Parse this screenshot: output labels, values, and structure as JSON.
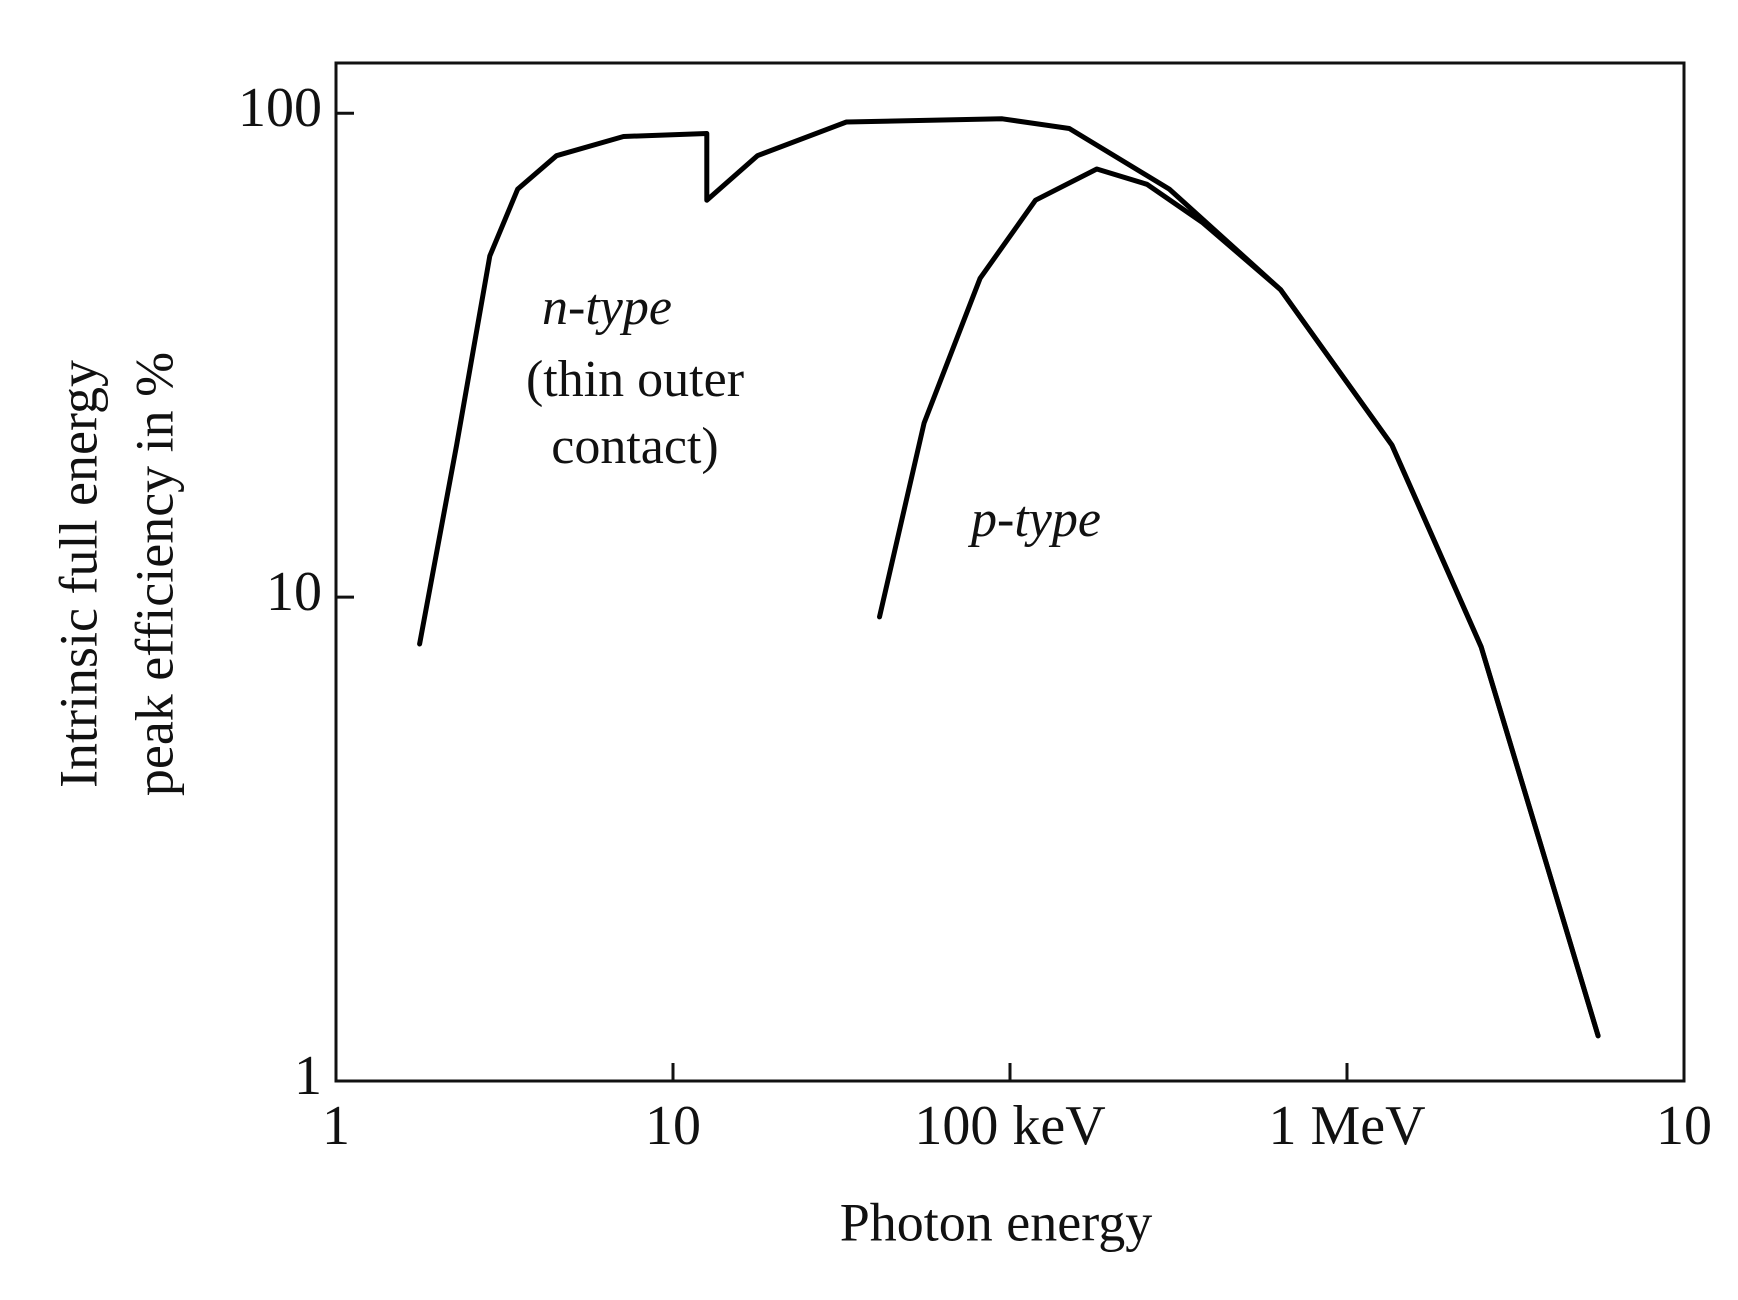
{
  "chart_data": {
    "type": "line",
    "xlabel": "Photon energy",
    "ylabel": [
      "Intrinsic full energy",
      "peak efficiency in %"
    ],
    "xscale": "log",
    "yscale": "log",
    "xlim": [
      1,
      10000
    ],
    "ylim": [
      1,
      127
    ],
    "xticks": [
      1,
      10,
      {
        "value": 100,
        "label": "100 keV"
      },
      {
        "value": 1000,
        "label": "1 MeV"
      },
      {
        "value": 10000,
        "label": "10"
      }
    ],
    "yticks": [
      1,
      10,
      100
    ],
    "series": [
      {
        "name": "n-type",
        "color": "#000000",
        "x": [
          1.77,
          2.28,
          2.86,
          3.46,
          4.51,
          7.13,
          12.6,
          12.6,
          17.8,
          32.7,
          94.8,
          150,
          297,
          635,
          1360,
          2500,
          3950,
          5560
        ],
        "values": [
          8.0,
          20.6,
          50.7,
          69.7,
          81.7,
          89.5,
          90.8,
          66.1,
          81.7,
          95.9,
          97.4,
          93.0,
          69.7,
          43.2,
          20.6,
          7.9,
          2.74,
          1.24
        ]
      },
      {
        "name": "p-type",
        "color": "#000000",
        "x": [
          41.0,
          55.6,
          81.5,
          119,
          181,
          255,
          373,
          635,
          1360,
          2500,
          3950,
          5560
        ],
        "values": [
          9.1,
          22.9,
          45.6,
          66.1,
          76.7,
          71.3,
          59.4,
          43.2,
          20.6,
          7.9,
          2.74,
          1.24
        ]
      }
    ],
    "annotations": [
      "n-type",
      "(thin outer",
      "contact)",
      "p-type"
    ]
  }
}
